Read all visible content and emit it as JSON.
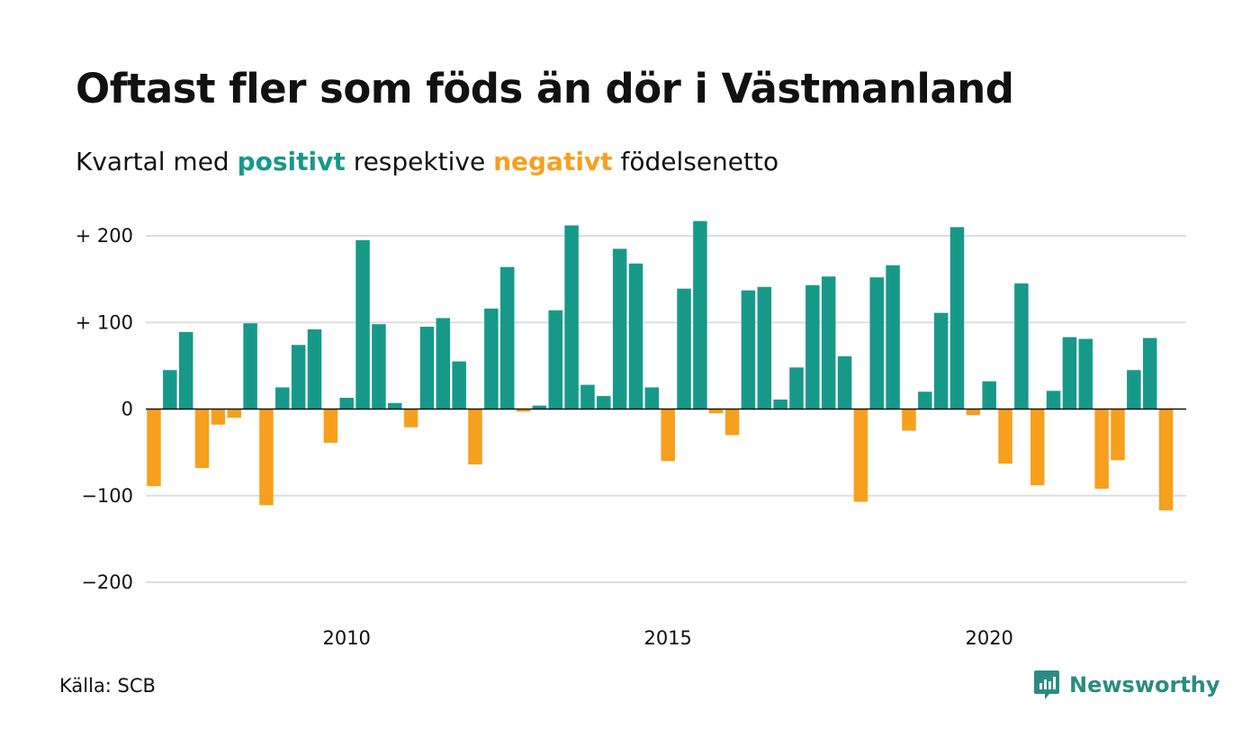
{
  "title": "Oftast fler som föds än dör i Västmanland",
  "subtitle": {
    "prefix": "Kvartal med",
    "positive": "positivt",
    "middle": "respektive",
    "negative": "negativt",
    "suffix": "födelsenetto"
  },
  "source": "Källa: SCB",
  "brand": {
    "name": "Newsworthy",
    "icon": "newsworthy-logo-icon"
  },
  "colors": {
    "positive": "#17998a",
    "negative": "#f6a01e",
    "grid": "#dddddd",
    "brand": "#2a8c82"
  },
  "chart_data": {
    "type": "bar",
    "title": "Oftast fler som föds än dör i Västmanland",
    "xlabel": "",
    "ylabel": "",
    "ylim": [
      -200,
      200
    ],
    "yticks": [
      {
        "value": 200,
        "label": "+ 200"
      },
      {
        "value": 100,
        "label": "+ 100"
      },
      {
        "value": 0,
        "label": "0"
      },
      {
        "value": -100,
        "label": "−100"
      },
      {
        "value": -200,
        "label": "−200"
      }
    ],
    "xticks": [
      {
        "value": 2010,
        "label": "2010"
      },
      {
        "value": 2015,
        "label": "2015"
      },
      {
        "value": 2020,
        "label": "2020"
      }
    ],
    "grid": true,
    "categories": [
      "2007K1",
      "2007K2",
      "2007K3",
      "2007K4",
      "2008K1",
      "2008K2",
      "2008K3",
      "2008K4",
      "2009K1",
      "2009K2",
      "2009K3",
      "2009K4",
      "2010K1",
      "2010K2",
      "2010K3",
      "2010K4",
      "2011K1",
      "2011K2",
      "2011K3",
      "2011K4",
      "2012K1",
      "2012K2",
      "2012K3",
      "2012K4",
      "2013K1",
      "2013K2",
      "2013K3",
      "2013K4",
      "2014K1",
      "2014K2",
      "2014K3",
      "2014K4",
      "2015K1",
      "2015K2",
      "2015K3",
      "2015K4",
      "2016K1",
      "2016K2",
      "2016K3",
      "2016K4",
      "2017K1",
      "2017K2",
      "2017K3",
      "2017K4",
      "2018K1",
      "2018K2",
      "2018K3",
      "2018K4",
      "2019K1",
      "2019K2",
      "2019K3",
      "2019K4",
      "2020K1",
      "2020K2",
      "2020K3",
      "2020K4",
      "2021K1",
      "2021K2",
      "2021K3",
      "2021K4",
      "2022K1",
      "2022K2",
      "2022K3",
      "2022K4",
      "2023K1"
    ],
    "values": [
      -89,
      45,
      89,
      -68,
      -18,
      -10,
      99,
      -111,
      25,
      74,
      92,
      -39,
      13,
      195,
      98,
      7,
      -21,
      95,
      105,
      55,
      -64,
      116,
      164,
      -3,
      4,
      114,
      212,
      28,
      15,
      185,
      168,
      25,
      -60,
      139,
      217,
      -5,
      -30,
      137,
      141,
      11,
      48,
      143,
      153,
      61,
      -107,
      152,
      166,
      -25,
      20,
      111,
      210,
      -7,
      32,
      -63,
      145,
      -88,
      21,
      83,
      81,
      -92,
      -59,
      45,
      82,
      -117,
      0
    ]
  }
}
